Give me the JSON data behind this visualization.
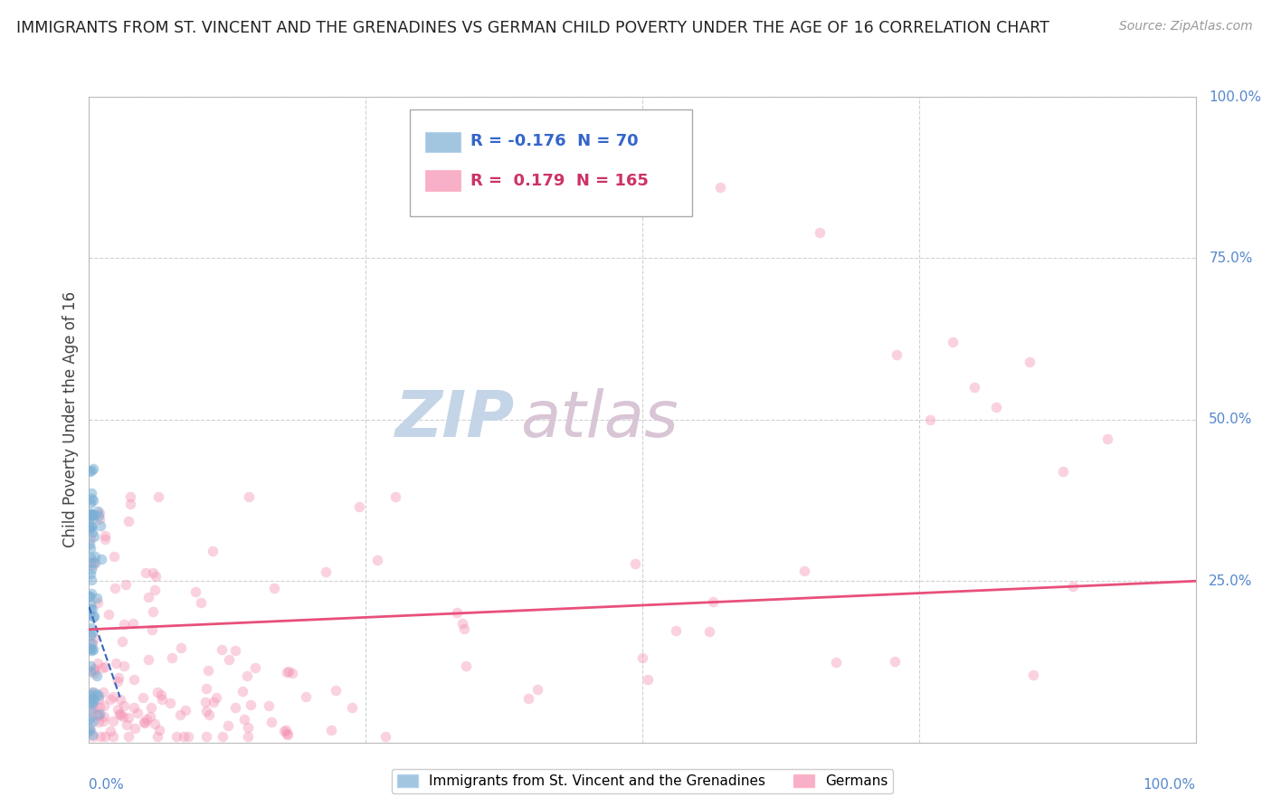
{
  "title": "IMMIGRANTS FROM ST. VINCENT AND THE GRENADINES VS GERMAN CHILD POVERTY UNDER THE AGE OF 16 CORRELATION CHART",
  "source": "Source: ZipAtlas.com",
  "ylabel": "Child Poverty Under the Age of 16",
  "legend_blue_R": "-0.176",
  "legend_blue_N": "70",
  "legend_pink_R": "0.179",
  "legend_pink_N": "165",
  "blue_color": "#7BAFD4",
  "pink_color": "#F48FB1",
  "blue_line_color": "#3366BB",
  "pink_line_color": "#E8507A",
  "watermark_zip": "ZIP",
  "watermark_atlas": "atlas",
  "legend1_label": "Immigrants from St. Vincent and the Grenadines",
  "legend2_label": "Germans",
  "seed": 7,
  "blue_N": 70,
  "pink_N": 165,
  "xlim": [
    0,
    1
  ],
  "ylim": [
    0,
    1
  ],
  "background_color": "#FFFFFF",
  "grid_color": "#CCCCCC",
  "title_fontsize": 12.5,
  "source_fontsize": 10,
  "axis_label_fontsize": 12,
  "tick_fontsize": 11,
  "legend_fontsize": 13,
  "watermark_fontsize": 52,
  "watermark_color_zip": "#C5D5E8",
  "watermark_color_atlas": "#D8C5D5",
  "scatter_size": 70,
  "blue_scatter_alpha": 0.55,
  "pink_scatter_alpha": 0.4
}
